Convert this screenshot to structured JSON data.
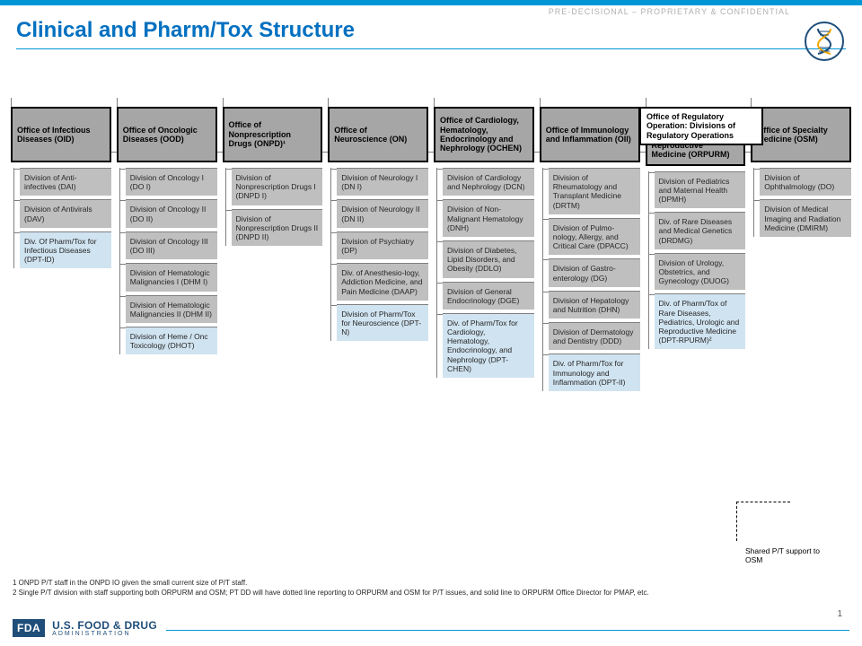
{
  "header": {
    "confidential": "PRE-DECISIONAL – PROPRIETARY & CONFIDENTIAL",
    "title": "Clinical and Pharm/Tox Structure"
  },
  "top_office": "Office of Regulatory Operation: Divisions of Regulatory Operations",
  "offices": [
    {
      "name": "Office of Infectious Diseases (OID)",
      "divisions": [
        {
          "label": "Division of Anti-infectives (DAI)",
          "style": "gray"
        },
        {
          "label": "Division of Antivirals (DAV)",
          "style": "gray"
        },
        {
          "label": "Div. Of Pharm/Tox for Infectious Diseases (DPT-ID)",
          "style": "blue"
        }
      ]
    },
    {
      "name": "Office of Oncologic Diseases (OOD)",
      "divisions": [
        {
          "label": "Division of Oncology I (DO I)",
          "style": "gray"
        },
        {
          "label": "Division of Oncology II (DO II)",
          "style": "gray"
        },
        {
          "label": "Division of Oncology III (DO III)",
          "style": "gray"
        },
        {
          "label": "Division of Hematologic Malignancies I (DHM I)",
          "style": "gray"
        },
        {
          "label": "Division of Hematologic Malignancies II (DHM II)",
          "style": "gray"
        },
        {
          "label": "Division of Heme / Onc Toxicology (DHOT)",
          "style": "blue"
        }
      ]
    },
    {
      "name": "Office of Nonprescription Drugs (ONPD)¹",
      "divisions": [
        {
          "label": "Division of Nonprescription Drugs I (DNPD I)",
          "style": "gray"
        },
        {
          "label": "Division of Nonprescription Drugs II (DNPD II)",
          "style": "gray"
        }
      ]
    },
    {
      "name": "Office of Neuroscience (ON)",
      "divisions": [
        {
          "label": "Division of Neurology I (DN I)",
          "style": "gray"
        },
        {
          "label": "Division of Neurology II (DN II)",
          "style": "gray"
        },
        {
          "label": "Division of Psychiatry (DP)",
          "style": "gray"
        },
        {
          "label": "Div. of Anesthesio-logy, Addiction Medicine, and Pain Medicine (DAAP)",
          "style": "gray"
        },
        {
          "label": "Division of Pharm/Tox for Neuroscience (DPT-N)",
          "style": "blue"
        }
      ]
    },
    {
      "name": "Office of Cardiology, Hematology, Endocrinology and Nephrology (OCHEN)",
      "divisions": [
        {
          "label": "Division of Cardiology and Nephrology (DCN)",
          "style": "gray"
        },
        {
          "label": "Division of Non-Malignant Hematology (DNH)",
          "style": "gray"
        },
        {
          "label": "Division of Diabetes, Lipid Disorders, and Obesity (DDLO)",
          "style": "gray"
        },
        {
          "label": "Division of General Endocrinology (DGE)",
          "style": "gray"
        },
        {
          "label": "Div. of Pharm/Tox for Cardiology, Hematology, Endocrinology, and Nephrology (DPT-CHEN)",
          "style": "blue"
        }
      ]
    },
    {
      "name": "Office of Immunology and Inflammation (OII)",
      "divisions": [
        {
          "label": "Division of Rheumatology and Transplant Medicine (DRTM)",
          "style": "gray"
        },
        {
          "label": "Division of Pulmo-nology, Allergy, and Critical Care (DPACC)",
          "style": "gray"
        },
        {
          "label": "Division of Gastro-enterology (DG)",
          "style": "gray"
        },
        {
          "label": "Division of Hepatology and Nutrition (DHN)",
          "style": "gray"
        },
        {
          "label": "Division of Dermatology and Dentistry (DDD)",
          "style": "gray"
        },
        {
          "label": "Div. of Pharm/Tox for Immunology and Inflammation (DPT-II)",
          "style": "blue"
        }
      ]
    },
    {
      "name": "Office of Rare Diseases, Pediatrics, Urologic and Reproductive Medicine (ORPURM)",
      "divisions": [
        {
          "label": "Division of Pediatrics and Maternal Health (DPMH)",
          "style": "gray"
        },
        {
          "label": "Div. of Rare Diseases and Medical Genetics (DRDMG)",
          "style": "gray"
        },
        {
          "label": "Division of Urology, Obstetrics, and Gynecology (DUOG)",
          "style": "gray"
        },
        {
          "label": "Div. of Pharm/Tox of Rare Diseases, Pediatrics, Urologic and Reproductive Medicine (DPT-RPURM)²",
          "style": "blue"
        }
      ]
    },
    {
      "name": "Office of Specialty Medicine (OSM)",
      "divisions": [
        {
          "label": "Division of Ophthalmology (DO)",
          "style": "gray"
        },
        {
          "label": "Division of Medical Imaging and Radiation Medicine (DMIRM)",
          "style": "gray"
        }
      ]
    }
  ],
  "shared_note": "Shared P/T support to OSM",
  "footnotes": {
    "f1": "1 ONPD P/T staff in the ONPD IO given the small current size of P/T staff.",
    "f2": "2 Single P/T division with staff supporting both ORPURM and OSM; PT DD will have dotted line reporting to ORPURM and OSM for P/T issues, and solid line to ORPURM Office Director for PMAP, etc."
  },
  "footer": {
    "badge": "FDA",
    "line1": "U.S. FOOD & DRUG",
    "line2": "ADMINISTRATION",
    "page": "1"
  },
  "colors": {
    "accent": "#0096d6",
    "title": "#0070c0",
    "office_bg": "#a6a6a6",
    "div_gray": "#bfbfbf",
    "div_blue": "#d0e3f0",
    "fda_navy": "#1f4e79"
  }
}
